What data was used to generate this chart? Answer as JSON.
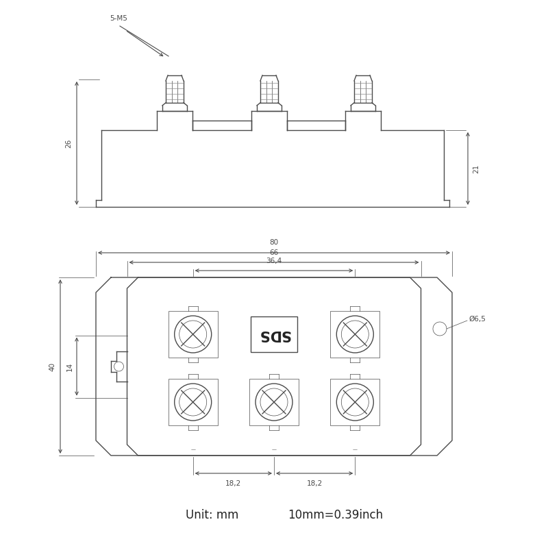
{
  "bg_color": "#ffffff",
  "line_color": "#4a4a4a",
  "line_width": 1.0,
  "thin_lw": 0.5,
  "dim_color": "#4a4a4a",
  "text_color": "#222222",
  "font_size": 7.5,
  "unit_text_1": "Unit: mm",
  "unit_text_2": "10mm=0.39inch",
  "label_5M5": "5-M5",
  "label_26": "26",
  "label_21": "21",
  "label_80": "80",
  "label_66": "66",
  "label_364": "36,4",
  "label_40": "40",
  "label_14": "14",
  "label_182a": "18,2",
  "label_182b": "18,2",
  "label_d65": "Ø6,5"
}
